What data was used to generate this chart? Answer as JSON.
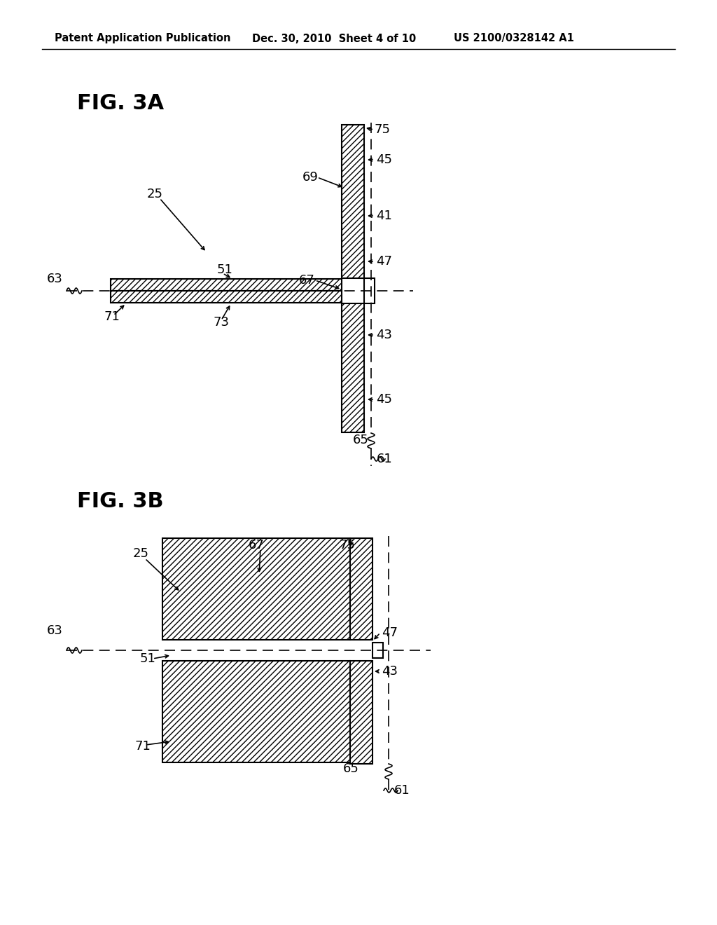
{
  "background_color": "#ffffff",
  "header_left": "Patent Application Publication",
  "header_center": "Dec. 30, 2010  Sheet 4 of 10",
  "header_right": "US 2100/0328142 A1",
  "line_color": "#000000"
}
